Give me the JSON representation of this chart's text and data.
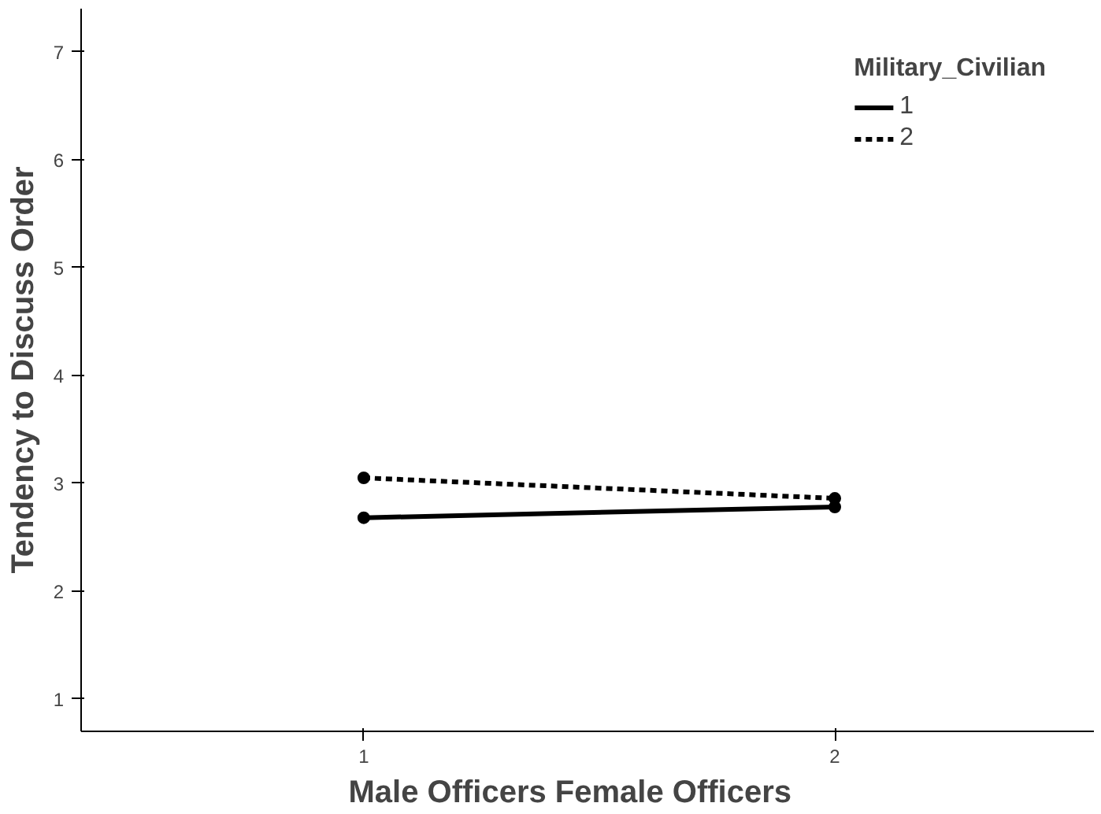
{
  "chart_data": {
    "type": "line",
    "x": [
      1,
      2
    ],
    "xlabel": "Male Officers     Female Officers",
    "ylabel": "Tendency to Discuss Order",
    "legend_title": "Military_Civilian",
    "series": [
      {
        "name": "1",
        "color": "#000000",
        "values": [
          2.68,
          2.78
        ],
        "line_style": "solid"
      },
      {
        "name": "2",
        "color": "#000000",
        "values": [
          3.05,
          2.86
        ],
        "line_style": "dashed"
      }
    ],
    "xlim": [
      0.4,
      2.55
    ],
    "xticks": [
      1,
      2
    ],
    "ylim": [
      0.7,
      7.4
    ],
    "yticks": [
      1,
      2,
      3,
      4,
      5,
      6,
      7
    ],
    "marker": "circle",
    "legend": "top right",
    "grid": false
  }
}
